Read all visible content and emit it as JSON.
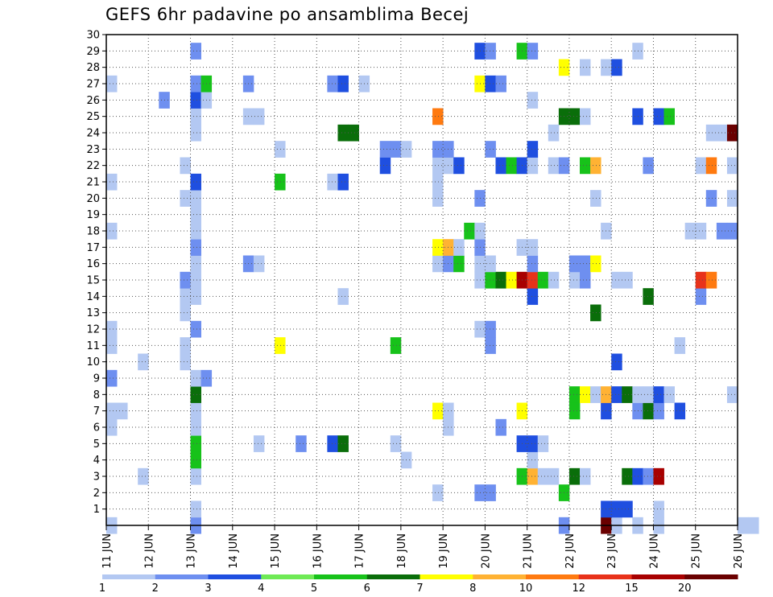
{
  "page": {
    "title": "GEFS 6hr padavine po ansamblima Becej"
  },
  "chart_data": {
    "type": "heatmap",
    "title": "GEFS 6hr padavine po ansamblima Becej",
    "xlabel": "",
    "ylabel": "",
    "x_ticks": [
      "11 JUN",
      "12 JUN",
      "13 JUN",
      "14 JUN",
      "15 JUN",
      "16 JUN",
      "17 JUN",
      "18 JUN",
      "19 JUN",
      "20 JUN",
      "21 JUN",
      "22 JUN",
      "23 JUN",
      "24 JUN",
      "25 JUN",
      "26 JUN"
    ],
    "y_ticks": [
      "1",
      "2",
      "3",
      "4",
      "5",
      "6",
      "7",
      "8",
      "9",
      "10",
      "11",
      "12",
      "13",
      "14",
      "15",
      "16",
      "17",
      "18",
      "19",
      "20",
      "21",
      "22",
      "23",
      "24",
      "25",
      "26",
      "27",
      "28",
      "29",
      "30"
    ],
    "xlim": [
      "11 JUN",
      "26 JUN"
    ],
    "time_step_hours": 6,
    "ylim": [
      0,
      30
    ],
    "grid": true,
    "colorbar": {
      "labels": [
        "1",
        "2",
        "3",
        "4",
        "5",
        "6",
        "7",
        "8",
        "10",
        "12",
        "15",
        "20"
      ],
      "colors": [
        "#b3c8f2",
        "#6e8ff0",
        "#1f4fe0",
        "#6fea55",
        "#17c21a",
        "#0a6e0a",
        "#ffff00",
        "#ffb233",
        "#ff7a10",
        "#e8321a",
        "#a80000",
        "#6a0000"
      ]
    },
    "cells": [
      {
        "t": 0,
        "m": 0,
        "c": 0
      },
      {
        "t": 8,
        "m": 0,
        "c": 1
      },
      {
        "t": 43,
        "m": 0,
        "c": 1
      },
      {
        "t": 47,
        "m": 0,
        "c": 11
      },
      {
        "t": 48,
        "m": 0,
        "c": 0
      },
      {
        "t": 50,
        "m": 0,
        "c": 0
      },
      {
        "t": 52,
        "m": 0,
        "c": 0
      },
      {
        "t": 60,
        "m": 0,
        "c": 0
      },
      {
        "t": 61,
        "m": 0,
        "c": 0
      },
      {
        "t": 8,
        "m": 1,
        "c": 0
      },
      {
        "t": 47,
        "m": 1,
        "c": 2
      },
      {
        "t": 48,
        "m": 1,
        "c": 2
      },
      {
        "t": 49,
        "m": 1,
        "c": 2
      },
      {
        "t": 52,
        "m": 1,
        "c": 0
      },
      {
        "t": 31,
        "m": 2,
        "c": 0
      },
      {
        "t": 35,
        "m": 2,
        "c": 1
      },
      {
        "t": 36,
        "m": 2,
        "c": 1
      },
      {
        "t": 43,
        "m": 2,
        "c": 4
      },
      {
        "t": 3,
        "m": 3,
        "c": 0
      },
      {
        "t": 8,
        "m": 3,
        "c": 0
      },
      {
        "t": 39,
        "m": 3,
        "c": 4
      },
      {
        "t": 40,
        "m": 3,
        "c": 7
      },
      {
        "t": 41,
        "m": 3,
        "c": 0
      },
      {
        "t": 42,
        "m": 3,
        "c": 0
      },
      {
        "t": 44,
        "m": 3,
        "c": 5
      },
      {
        "t": 45,
        "m": 3,
        "c": 0
      },
      {
        "t": 49,
        "m": 3,
        "c": 5
      },
      {
        "t": 50,
        "m": 3,
        "c": 2
      },
      {
        "t": 51,
        "m": 3,
        "c": 1
      },
      {
        "t": 52,
        "m": 3,
        "c": 10
      },
      {
        "t": 8,
        "m": 4,
        "c": 4
      },
      {
        "t": 28,
        "m": 4,
        "c": 0
      },
      {
        "t": 40,
        "m": 4,
        "c": 0
      },
      {
        "t": 8,
        "m": 5,
        "c": 4
      },
      {
        "t": 14,
        "m": 5,
        "c": 0
      },
      {
        "t": 18,
        "m": 5,
        "c": 1
      },
      {
        "t": 21,
        "m": 5,
        "c": 2
      },
      {
        "t": 22,
        "m": 5,
        "c": 5
      },
      {
        "t": 27,
        "m": 5,
        "c": 0
      },
      {
        "t": 39,
        "m": 5,
        "c": 2
      },
      {
        "t": 40,
        "m": 5,
        "c": 2
      },
      {
        "t": 41,
        "m": 5,
        "c": 0
      },
      {
        "t": 0,
        "m": 6,
        "c": 0
      },
      {
        "t": 8,
        "m": 6,
        "c": 0
      },
      {
        "t": 32,
        "m": 6,
        "c": 0
      },
      {
        "t": 37,
        "m": 6,
        "c": 1
      },
      {
        "t": 0,
        "m": 7,
        "c": 0
      },
      {
        "t": 1,
        "m": 7,
        "c": 0
      },
      {
        "t": 8,
        "m": 7,
        "c": 0
      },
      {
        "t": 31,
        "m": 7,
        "c": 6
      },
      {
        "t": 32,
        "m": 7,
        "c": 0
      },
      {
        "t": 39,
        "m": 7,
        "c": 6
      },
      {
        "t": 44,
        "m": 7,
        "c": 4
      },
      {
        "t": 47,
        "m": 7,
        "c": 2
      },
      {
        "t": 50,
        "m": 7,
        "c": 1
      },
      {
        "t": 51,
        "m": 7,
        "c": 5
      },
      {
        "t": 52,
        "m": 7,
        "c": 1
      },
      {
        "t": 54,
        "m": 7,
        "c": 2
      },
      {
        "t": 8,
        "m": 8,
        "c": 5
      },
      {
        "t": 44,
        "m": 8,
        "c": 4
      },
      {
        "t": 45,
        "m": 8,
        "c": 6
      },
      {
        "t": 46,
        "m": 8,
        "c": 0
      },
      {
        "t": 47,
        "m": 8,
        "c": 7
      },
      {
        "t": 48,
        "m": 8,
        "c": 2
      },
      {
        "t": 49,
        "m": 8,
        "c": 5
      },
      {
        "t": 50,
        "m": 8,
        "c": 0
      },
      {
        "t": 51,
        "m": 8,
        "c": 0
      },
      {
        "t": 52,
        "m": 8,
        "c": 2
      },
      {
        "t": 53,
        "m": 8,
        "c": 0
      },
      {
        "t": 59,
        "m": 8,
        "c": 0
      },
      {
        "t": 0,
        "m": 9,
        "c": 1
      },
      {
        "t": 8,
        "m": 9,
        "c": 0
      },
      {
        "t": 9,
        "m": 9,
        "c": 1
      },
      {
        "t": 3,
        "m": 10,
        "c": 0
      },
      {
        "t": 7,
        "m": 10,
        "c": 0
      },
      {
        "t": 48,
        "m": 10,
        "c": 2
      },
      {
        "t": 0,
        "m": 11,
        "c": 0
      },
      {
        "t": 7,
        "m": 11,
        "c": 0
      },
      {
        "t": 16,
        "m": 11,
        "c": 6
      },
      {
        "t": 27,
        "m": 11,
        "c": 4
      },
      {
        "t": 36,
        "m": 11,
        "c": 1
      },
      {
        "t": 54,
        "m": 11,
        "c": 0
      },
      {
        "t": 0,
        "m": 12,
        "c": 0
      },
      {
        "t": 8,
        "m": 12,
        "c": 1
      },
      {
        "t": 35,
        "m": 12,
        "c": 0
      },
      {
        "t": 36,
        "m": 12,
        "c": 1
      },
      {
        "t": 7,
        "m": 13,
        "c": 0
      },
      {
        "t": 46,
        "m": 13,
        "c": 5
      },
      {
        "t": 7,
        "m": 14,
        "c": 0
      },
      {
        "t": 8,
        "m": 14,
        "c": 0
      },
      {
        "t": 22,
        "m": 14,
        "c": 0
      },
      {
        "t": 40,
        "m": 14,
        "c": 2
      },
      {
        "t": 51,
        "m": 14,
        "c": 5
      },
      {
        "t": 56,
        "m": 14,
        "c": 1
      },
      {
        "t": 7,
        "m": 15,
        "c": 1
      },
      {
        "t": 8,
        "m": 15,
        "c": 0
      },
      {
        "t": 35,
        "m": 15,
        "c": 0
      },
      {
        "t": 36,
        "m": 15,
        "c": 4
      },
      {
        "t": 37,
        "m": 15,
        "c": 5
      },
      {
        "t": 38,
        "m": 15,
        "c": 6
      },
      {
        "t": 39,
        "m": 15,
        "c": 10
      },
      {
        "t": 40,
        "m": 15,
        "c": 9
      },
      {
        "t": 41,
        "m": 15,
        "c": 4
      },
      {
        "t": 42,
        "m": 15,
        "c": 0
      },
      {
        "t": 44,
        "m": 15,
        "c": 0
      },
      {
        "t": 45,
        "m": 15,
        "c": 1
      },
      {
        "t": 48,
        "m": 15,
        "c": 0
      },
      {
        "t": 49,
        "m": 15,
        "c": 0
      },
      {
        "t": 56,
        "m": 15,
        "c": 9
      },
      {
        "t": 57,
        "m": 15,
        "c": 8
      },
      {
        "t": 8,
        "m": 16,
        "c": 0
      },
      {
        "t": 13,
        "m": 16,
        "c": 1
      },
      {
        "t": 14,
        "m": 16,
        "c": 0
      },
      {
        "t": 31,
        "m": 16,
        "c": 0
      },
      {
        "t": 32,
        "m": 16,
        "c": 1
      },
      {
        "t": 33,
        "m": 16,
        "c": 4
      },
      {
        "t": 35,
        "m": 16,
        "c": 0
      },
      {
        "t": 36,
        "m": 16,
        "c": 0
      },
      {
        "t": 40,
        "m": 16,
        "c": 1
      },
      {
        "t": 44,
        "m": 16,
        "c": 1
      },
      {
        "t": 45,
        "m": 16,
        "c": 1
      },
      {
        "t": 46,
        "m": 16,
        "c": 6
      },
      {
        "t": 8,
        "m": 17,
        "c": 1
      },
      {
        "t": 31,
        "m": 17,
        "c": 6
      },
      {
        "t": 32,
        "m": 17,
        "c": 7
      },
      {
        "t": 33,
        "m": 17,
        "c": 0
      },
      {
        "t": 35,
        "m": 17,
        "c": 1
      },
      {
        "t": 39,
        "m": 17,
        "c": 0
      },
      {
        "t": 40,
        "m": 17,
        "c": 0
      },
      {
        "t": 0,
        "m": 18,
        "c": 0
      },
      {
        "t": 8,
        "m": 18,
        "c": 0
      },
      {
        "t": 34,
        "m": 18,
        "c": 4
      },
      {
        "t": 35,
        "m": 18,
        "c": 0
      },
      {
        "t": 47,
        "m": 18,
        "c": 0
      },
      {
        "t": 55,
        "m": 18,
        "c": 0
      },
      {
        "t": 56,
        "m": 18,
        "c": 0
      },
      {
        "t": 58,
        "m": 18,
        "c": 1
      },
      {
        "t": 59,
        "m": 18,
        "c": 1
      },
      {
        "t": 8,
        "m": 19,
        "c": 0
      },
      {
        "t": 7,
        "m": 20,
        "c": 0
      },
      {
        "t": 8,
        "m": 20,
        "c": 0
      },
      {
        "t": 31,
        "m": 20,
        "c": 0
      },
      {
        "t": 35,
        "m": 20,
        "c": 1
      },
      {
        "t": 46,
        "m": 20,
        "c": 0
      },
      {
        "t": 57,
        "m": 20,
        "c": 1
      },
      {
        "t": 59,
        "m": 20,
        "c": 0
      },
      {
        "t": 0,
        "m": 21,
        "c": 0
      },
      {
        "t": 8,
        "m": 21,
        "c": 2
      },
      {
        "t": 16,
        "m": 21,
        "c": 4
      },
      {
        "t": 21,
        "m": 21,
        "c": 0
      },
      {
        "t": 22,
        "m": 21,
        "c": 2
      },
      {
        "t": 31,
        "m": 21,
        "c": 0
      },
      {
        "t": 7,
        "m": 22,
        "c": 0
      },
      {
        "t": 26,
        "m": 22,
        "c": 2
      },
      {
        "t": 31,
        "m": 22,
        "c": 0
      },
      {
        "t": 32,
        "m": 22,
        "c": 0
      },
      {
        "t": 33,
        "m": 22,
        "c": 2
      },
      {
        "t": 37,
        "m": 22,
        "c": 2
      },
      {
        "t": 38,
        "m": 22,
        "c": 4
      },
      {
        "t": 39,
        "m": 22,
        "c": 2
      },
      {
        "t": 40,
        "m": 22,
        "c": 0
      },
      {
        "t": 42,
        "m": 22,
        "c": 0
      },
      {
        "t": 43,
        "m": 22,
        "c": 1
      },
      {
        "t": 45,
        "m": 22,
        "c": 4
      },
      {
        "t": 46,
        "m": 22,
        "c": 7
      },
      {
        "t": 51,
        "m": 22,
        "c": 1
      },
      {
        "t": 56,
        "m": 22,
        "c": 0
      },
      {
        "t": 57,
        "m": 22,
        "c": 8
      },
      {
        "t": 59,
        "m": 22,
        "c": 0
      },
      {
        "t": 16,
        "m": 23,
        "c": 0
      },
      {
        "t": 26,
        "m": 23,
        "c": 1
      },
      {
        "t": 27,
        "m": 23,
        "c": 1
      },
      {
        "t": 28,
        "m": 23,
        "c": 0
      },
      {
        "t": 31,
        "m": 23,
        "c": 1
      },
      {
        "t": 32,
        "m": 23,
        "c": 1
      },
      {
        "t": 36,
        "m": 23,
        "c": 1
      },
      {
        "t": 40,
        "m": 23,
        "c": 2
      },
      {
        "t": 8,
        "m": 24,
        "c": 0
      },
      {
        "t": 22,
        "m": 24,
        "c": 5
      },
      {
        "t": 23,
        "m": 24,
        "c": 5
      },
      {
        "t": 42,
        "m": 24,
        "c": 0
      },
      {
        "t": 57,
        "m": 24,
        "c": 0
      },
      {
        "t": 58,
        "m": 24,
        "c": 0
      },
      {
        "t": 59,
        "m": 24,
        "c": 11
      },
      {
        "t": 8,
        "m": 25,
        "c": 0
      },
      {
        "t": 13,
        "m": 25,
        "c": 0
      },
      {
        "t": 14,
        "m": 25,
        "c": 0
      },
      {
        "t": 31,
        "m": 25,
        "c": 8
      },
      {
        "t": 43,
        "m": 25,
        "c": 5
      },
      {
        "t": 44,
        "m": 25,
        "c": 5
      },
      {
        "t": 45,
        "m": 25,
        "c": 0
      },
      {
        "t": 50,
        "m": 25,
        "c": 2
      },
      {
        "t": 52,
        "m": 25,
        "c": 2
      },
      {
        "t": 53,
        "m": 25,
        "c": 4
      },
      {
        "t": 5,
        "m": 26,
        "c": 1
      },
      {
        "t": 8,
        "m": 26,
        "c": 2
      },
      {
        "t": 9,
        "m": 26,
        "c": 0
      },
      {
        "t": 40,
        "m": 26,
        "c": 0
      },
      {
        "t": 0,
        "m": 27,
        "c": 0
      },
      {
        "t": 8,
        "m": 27,
        "c": 1
      },
      {
        "t": 9,
        "m": 27,
        "c": 4
      },
      {
        "t": 13,
        "m": 27,
        "c": 1
      },
      {
        "t": 21,
        "m": 27,
        "c": 1
      },
      {
        "t": 22,
        "m": 27,
        "c": 2
      },
      {
        "t": 24,
        "m": 27,
        "c": 0
      },
      {
        "t": 35,
        "m": 27,
        "c": 6
      },
      {
        "t": 36,
        "m": 27,
        "c": 2
      },
      {
        "t": 37,
        "m": 27,
        "c": 1
      },
      {
        "t": 43,
        "m": 28,
        "c": 6
      },
      {
        "t": 45,
        "m": 28,
        "c": 0
      },
      {
        "t": 47,
        "m": 28,
        "c": 0
      },
      {
        "t": 48,
        "m": 28,
        "c": 2
      },
      {
        "t": 8,
        "m": 29,
        "c": 1
      },
      {
        "t": 35,
        "m": 29,
        "c": 2
      },
      {
        "t": 36,
        "m": 29,
        "c": 1
      },
      {
        "t": 39,
        "m": 29,
        "c": 4
      },
      {
        "t": 40,
        "m": 29,
        "c": 1
      },
      {
        "t": 50,
        "m": 29,
        "c": 0
      }
    ]
  }
}
